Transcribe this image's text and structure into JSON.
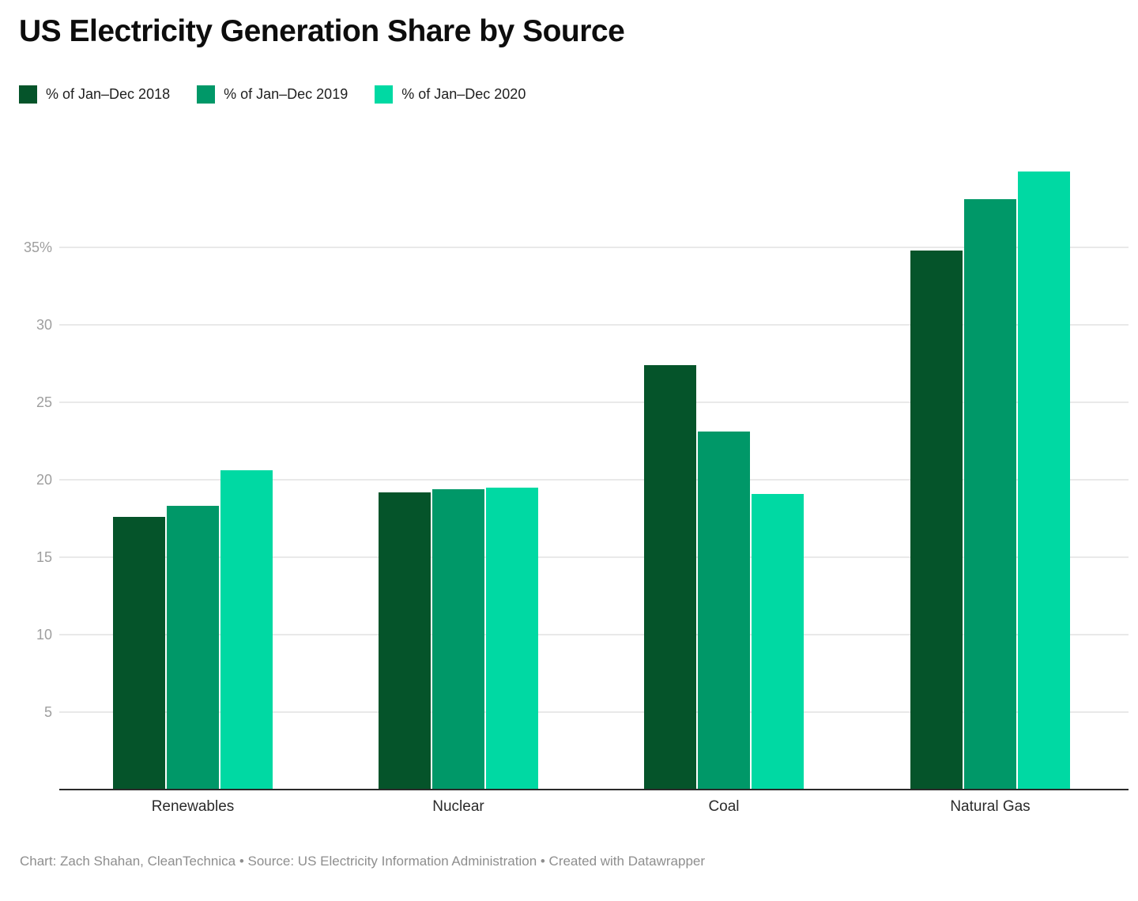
{
  "header": {
    "title": "US Electricity Generation Share by Source"
  },
  "chart_data": {
    "type": "bar",
    "title": "US Electricity Generation Share by Source",
    "categories": [
      "Renewables",
      "Nuclear",
      "Coal",
      "Natural Gas"
    ],
    "series": [
      {
        "name": "% of Jan–Dec 2018",
        "color": "#05542a",
        "values": [
          17.6,
          19.2,
          27.4,
          34.8
        ]
      },
      {
        "name": "% of Jan–Dec 2019",
        "color": "#009868",
        "values": [
          18.3,
          19.4,
          23.1,
          38.1
        ]
      },
      {
        "name": "% of Jan–Dec 2020",
        "color": "#00d9a3",
        "values": [
          20.6,
          19.5,
          19.1,
          39.9
        ]
      }
    ],
    "yticks": [
      {
        "value": 35,
        "label": "35%"
      },
      {
        "value": 30,
        "label": "30"
      },
      {
        "value": 25,
        "label": "25"
      },
      {
        "value": 20,
        "label": "20"
      },
      {
        "value": 15,
        "label": "15"
      },
      {
        "value": 10,
        "label": "10"
      },
      {
        "value": 5,
        "label": "5"
      }
    ],
    "ylim": [
      0,
      40
    ],
    "xlabel": "",
    "ylabel": "",
    "grid": "horizontal",
    "legend_position": "top",
    "axis_text_color": "#9e9e9e",
    "category_text_color": "#2b2b2b",
    "gridline_color": "#e9e9e9",
    "baseline_color": "#2a2a2a"
  },
  "footer": {
    "text": "Chart: Zach Shahan, CleanTechnica • Source: US Electricity Information Administration • Created with Datawrapper"
  }
}
